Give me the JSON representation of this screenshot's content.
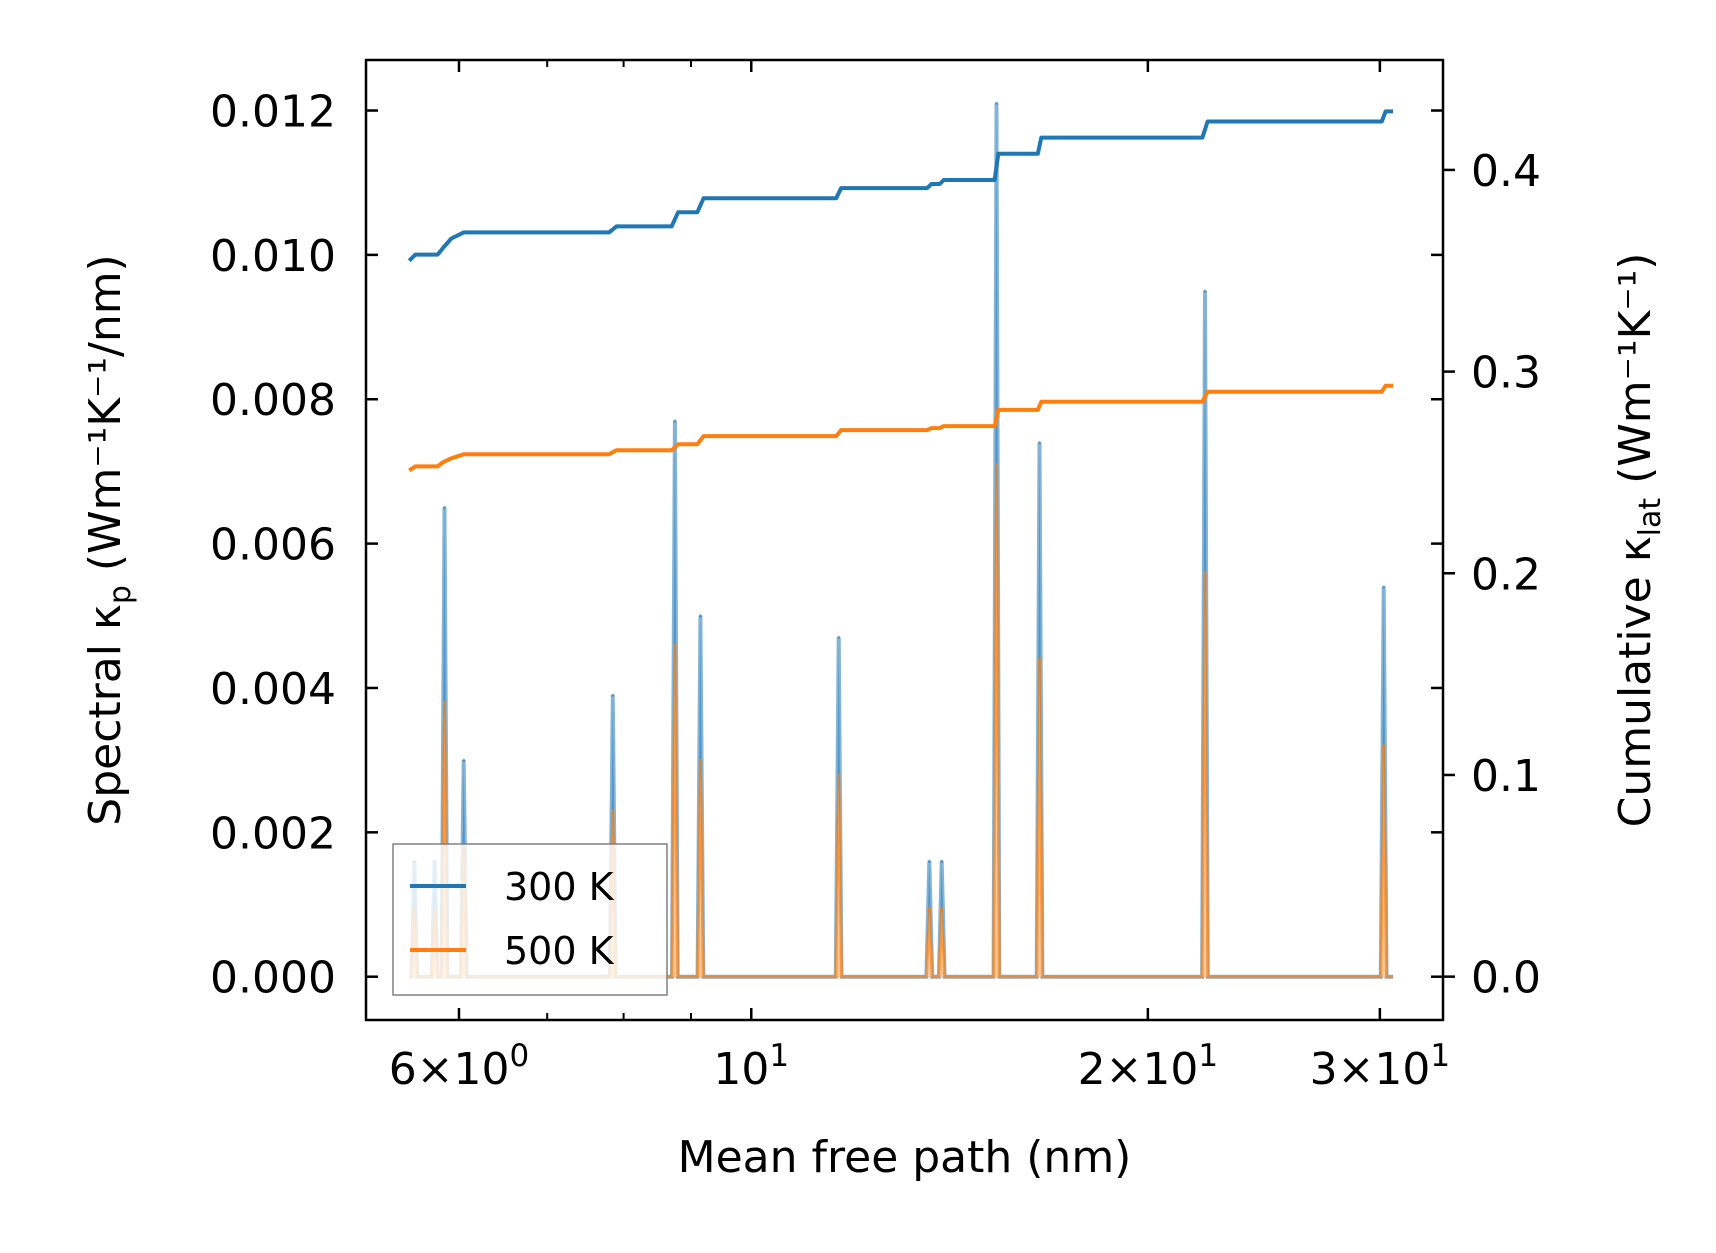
{
  "chart_data": {
    "type": "line",
    "title": "",
    "xlabel": "Mean free path (nm)",
    "xscale": "log",
    "xlim": [
      5.1,
      33.5
    ],
    "ylabel_left": {
      "pre": "Spectral κ",
      "sub": "p",
      "post": " (Wm⁻¹K⁻¹/nm)"
    },
    "ylabel_right": {
      "pre": "Cumulative κ",
      "sub": "lat",
      "post": " (Wm⁻¹K⁻¹)"
    },
    "ylim_left": [
      -0.0006,
      0.0127
    ],
    "ylim_right": [
      -0.0215,
      0.4545
    ],
    "x_ticks": [
      {
        "value": 6,
        "mant": "6",
        "exp": "0"
      },
      {
        "value": 10,
        "mant": "",
        "exp": "1"
      },
      {
        "value": 20,
        "mant": "2",
        "exp": "1"
      },
      {
        "value": 30,
        "mant": "3",
        "exp": "1"
      }
    ],
    "x_minor_ticks": [
      7,
      8,
      9
    ],
    "y_left_ticks": [
      "0.000",
      "0.002",
      "0.004",
      "0.006",
      "0.008",
      "0.010",
      "0.012"
    ],
    "y_right_ticks": [
      "0.0",
      "0.1",
      "0.2",
      "0.3",
      "0.4"
    ],
    "legend": {
      "placement": "lower-left",
      "entries": [
        "300 K",
        "500 K"
      ]
    },
    "colors": {
      "300 K": "#1f77b4",
      "500 K": "#ff7f0e",
      "spectral_300_fill": "#8fbcdc",
      "spectral_500_fill": "#f5c9a0"
    },
    "peaks": [
      {
        "x": 5.55,
        "k300": 0.0016,
        "k500": 0.00095
      },
      {
        "x": 5.75,
        "k300": 0.0016,
        "k500": 0.00095
      },
      {
        "x": 5.85,
        "k300": 0.0065,
        "k500": 0.0038
      },
      {
        "x": 6.05,
        "k300": 0.003,
        "k500": 0.0018
      },
      {
        "x": 7.85,
        "k300": 0.0039,
        "k500": 0.0023
      },
      {
        "x": 8.75,
        "k300": 0.0077,
        "k500": 0.0046
      },
      {
        "x": 9.15,
        "k300": 0.005,
        "k500": 0.003
      },
      {
        "x": 11.65,
        "k300": 0.0047,
        "k500": 0.0028
      },
      {
        "x": 13.65,
        "k300": 0.0016,
        "k500": 0.00095
      },
      {
        "x": 13.95,
        "k300": 0.0016,
        "k500": 0.00095
      },
      {
        "x": 15.35,
        "k300": 0.0121,
        "k500": 0.0071
      },
      {
        "x": 16.55,
        "k300": 0.0074,
        "k500": 0.0044
      },
      {
        "x": 22.1,
        "k300": 0.0095,
        "k500": 0.0056
      },
      {
        "x": 30.2,
        "k300": 0.0054,
        "k500": 0.0032
      }
    ],
    "series": [
      {
        "name": "300 K",
        "axis": "right",
        "x": [
          5.5,
          5.56,
          5.78,
          5.83,
          5.92,
          6.05,
          7.8,
          7.9,
          8.7,
          8.8,
          9.1,
          9.2,
          11.6,
          11.7,
          13.6,
          13.7,
          13.9,
          14.0,
          15.3,
          15.4,
          16.5,
          16.6,
          22.0,
          22.2,
          30.1,
          30.3,
          30.7
        ],
        "values": [
          0.355,
          0.358,
          0.358,
          0.361,
          0.366,
          0.369,
          0.369,
          0.372,
          0.372,
          0.379,
          0.379,
          0.386,
          0.386,
          0.391,
          0.391,
          0.393,
          0.393,
          0.395,
          0.395,
          0.408,
          0.408,
          0.416,
          0.416,
          0.424,
          0.424,
          0.429,
          0.429
        ]
      },
      {
        "name": "500 K",
        "axis": "right",
        "x": [
          5.5,
          5.56,
          5.78,
          5.83,
          5.92,
          6.05,
          7.8,
          7.9,
          8.7,
          8.8,
          9.1,
          9.2,
          11.6,
          11.7,
          13.6,
          13.7,
          13.9,
          14.0,
          15.3,
          15.4,
          16.5,
          16.6,
          22.0,
          22.2,
          30.1,
          30.3,
          30.7
        ],
        "values": [
          0.251,
          0.253,
          0.253,
          0.255,
          0.257,
          0.259,
          0.259,
          0.261,
          0.261,
          0.264,
          0.264,
          0.268,
          0.268,
          0.271,
          0.271,
          0.272,
          0.272,
          0.273,
          0.273,
          0.281,
          0.281,
          0.285,
          0.285,
          0.29,
          0.29,
          0.293,
          0.293
        ]
      }
    ]
  }
}
